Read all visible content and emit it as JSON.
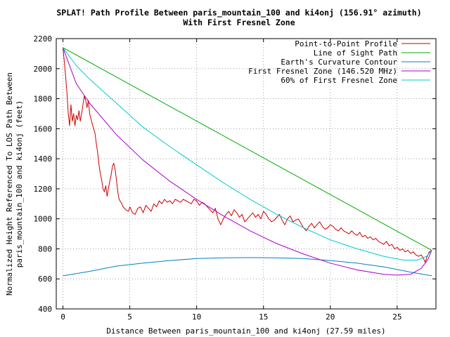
{
  "chart_data": {
    "type": "line",
    "title": "SPLAT! Path Profile Between paris_mountain_100 and ki4onj (156.91° azimuth)",
    "subtitle": "With First Fresnel Zone",
    "xlabel": "Distance Between paris_mountain_100 and ki4onj (27.59 miles)",
    "ylabel_line1": "Normalized Height Referenced To LOS Path Between",
    "ylabel_line2": "paris_mountain_100 and ki4onj (feet)",
    "xlim": [
      -0.5,
      27.9
    ],
    "ylim": [
      400,
      2200
    ],
    "x_ticks": [
      0,
      5,
      10,
      15,
      20,
      25
    ],
    "y_ticks": [
      400,
      600,
      800,
      1000,
      1200,
      1400,
      1600,
      1800,
      2000,
      2200
    ],
    "grid": true,
    "legend_position": "top-right",
    "series": [
      {
        "name": "Point-to-Point Profile",
        "color": "#cc0000",
        "points": [
          [
            0,
            2140
          ],
          [
            0.1,
            2050
          ],
          [
            0.2,
            1950
          ],
          [
            0.3,
            1840
          ],
          [
            0.4,
            1700
          ],
          [
            0.5,
            1620
          ],
          [
            0.6,
            1760
          ],
          [
            0.7,
            1650
          ],
          [
            0.8,
            1700
          ],
          [
            0.9,
            1620
          ],
          [
            1.0,
            1690
          ],
          [
            1.1,
            1660
          ],
          [
            1.2,
            1720
          ],
          [
            1.3,
            1650
          ],
          [
            1.4,
            1700
          ],
          [
            1.5,
            1760
          ],
          [
            1.6,
            1820
          ],
          [
            1.7,
            1790
          ],
          [
            1.8,
            1740
          ],
          [
            1.9,
            1790
          ],
          [
            2.0,
            1700
          ],
          [
            2.2,
            1630
          ],
          [
            2.4,
            1570
          ],
          [
            2.5,
            1500
          ],
          [
            2.6,
            1440
          ],
          [
            2.7,
            1360
          ],
          [
            2.8,
            1300
          ],
          [
            2.9,
            1260
          ],
          [
            3.0,
            1200
          ],
          [
            3.1,
            1180
          ],
          [
            3.2,
            1220
          ],
          [
            3.3,
            1150
          ],
          [
            3.4,
            1200
          ],
          [
            3.5,
            1250
          ],
          [
            3.6,
            1290
          ],
          [
            3.7,
            1350
          ],
          [
            3.8,
            1370
          ],
          [
            3.9,
            1330
          ],
          [
            4.0,
            1260
          ],
          [
            4.1,
            1180
          ],
          [
            4.2,
            1130
          ],
          [
            4.4,
            1100
          ],
          [
            4.5,
            1080
          ],
          [
            4.7,
            1060
          ],
          [
            4.9,
            1050
          ],
          [
            5.0,
            1080
          ],
          [
            5.2,
            1040
          ],
          [
            5.4,
            1030
          ],
          [
            5.6,
            1070
          ],
          [
            5.8,
            1080
          ],
          [
            6.0,
            1040
          ],
          [
            6.2,
            1090
          ],
          [
            6.4,
            1070
          ],
          [
            6.6,
            1050
          ],
          [
            6.8,
            1100
          ],
          [
            7.0,
            1080
          ],
          [
            7.2,
            1120
          ],
          [
            7.4,
            1100
          ],
          [
            7.6,
            1130
          ],
          [
            7.8,
            1110
          ],
          [
            8.0,
            1120
          ],
          [
            8.2,
            1100
          ],
          [
            8.4,
            1130
          ],
          [
            8.6,
            1120
          ],
          [
            8.8,
            1110
          ],
          [
            9.0,
            1130
          ],
          [
            9.2,
            1120
          ],
          [
            9.4,
            1110
          ],
          [
            9.6,
            1100
          ],
          [
            9.8,
            1130
          ],
          [
            10.0,
            1120
          ],
          [
            10.2,
            1090
          ],
          [
            10.4,
            1110
          ],
          [
            10.6,
            1100
          ],
          [
            10.8,
            1080
          ],
          [
            11.0,
            1060
          ],
          [
            11.2,
            1040
          ],
          [
            11.4,
            1070
          ],
          [
            11.6,
            1000
          ],
          [
            11.8,
            960
          ],
          [
            12.0,
            1000
          ],
          [
            12.2,
            1030
          ],
          [
            12.4,
            1050
          ],
          [
            12.6,
            1020
          ],
          [
            12.8,
            1060
          ],
          [
            13.0,
            1040
          ],
          [
            13.2,
            1010
          ],
          [
            13.4,
            1030
          ],
          [
            13.6,
            980
          ],
          [
            13.8,
            1000
          ],
          [
            14.0,
            1020
          ],
          [
            14.2,
            1040
          ],
          [
            14.4,
            1010
          ],
          [
            14.6,
            1030
          ],
          [
            14.8,
            1000
          ],
          [
            15.0,
            1050
          ],
          [
            15.2,
            1030
          ],
          [
            15.4,
            1000
          ],
          [
            15.6,
            980
          ],
          [
            15.8,
            990
          ],
          [
            16.0,
            1010
          ],
          [
            16.2,
            1030
          ],
          [
            16.4,
            990
          ],
          [
            16.6,
            960
          ],
          [
            16.8,
            1000
          ],
          [
            17.0,
            1020
          ],
          [
            17.2,
            980
          ],
          [
            17.4,
            990
          ],
          [
            17.6,
            1000
          ],
          [
            17.8,
            970
          ],
          [
            18.0,
            940
          ],
          [
            18.2,
            920
          ],
          [
            18.4,
            950
          ],
          [
            18.6,
            970
          ],
          [
            18.8,
            940
          ],
          [
            19.0,
            960
          ],
          [
            19.2,
            980
          ],
          [
            19.4,
            950
          ],
          [
            19.6,
            930
          ],
          [
            19.8,
            940
          ],
          [
            20.0,
            960
          ],
          [
            20.2,
            950
          ],
          [
            20.4,
            930
          ],
          [
            20.6,
            920
          ],
          [
            20.8,
            940
          ],
          [
            21.0,
            920
          ],
          [
            21.2,
            910
          ],
          [
            21.4,
            900
          ],
          [
            21.6,
            920
          ],
          [
            21.8,
            900
          ],
          [
            22.0,
            890
          ],
          [
            22.2,
            910
          ],
          [
            22.4,
            880
          ],
          [
            22.6,
            890
          ],
          [
            22.8,
            870
          ],
          [
            23.0,
            880
          ],
          [
            23.2,
            860
          ],
          [
            23.4,
            870
          ],
          [
            23.6,
            850
          ],
          [
            23.8,
            840
          ],
          [
            24.0,
            830
          ],
          [
            24.2,
            850
          ],
          [
            24.4,
            820
          ],
          [
            24.6,
            830
          ],
          [
            24.8,
            800
          ],
          [
            25.0,
            810
          ],
          [
            25.2,
            790
          ],
          [
            25.4,
            800
          ],
          [
            25.6,
            780
          ],
          [
            25.8,
            790
          ],
          [
            26.0,
            770
          ],
          [
            26.2,
            780
          ],
          [
            26.4,
            760
          ],
          [
            26.6,
            750
          ],
          [
            26.8,
            760
          ],
          [
            27.0,
            730
          ],
          [
            27.1,
            710
          ],
          [
            27.2,
            740
          ],
          [
            27.3,
            760
          ],
          [
            27.4,
            780
          ],
          [
            27.59,
            790
          ]
        ]
      },
      {
        "name": "Line of Sight Path",
        "color": "#00aa00",
        "points": [
          [
            0,
            2140
          ],
          [
            27.59,
            790
          ]
        ]
      },
      {
        "name": "Earth's Curvature Contour",
        "color": "#0080c0",
        "points": [
          [
            0,
            620
          ],
          [
            2,
            650
          ],
          [
            4,
            685
          ],
          [
            6,
            705
          ],
          [
            8,
            722
          ],
          [
            10,
            735
          ],
          [
            12,
            740
          ],
          [
            14,
            742
          ],
          [
            16,
            740
          ],
          [
            18,
            735
          ],
          [
            20,
            722
          ],
          [
            22,
            705
          ],
          [
            24,
            680
          ],
          [
            26,
            645
          ],
          [
            27.59,
            620
          ]
        ]
      },
      {
        "name": "First Fresnel Zone (146.520 MHz)",
        "color": "#aa00cc",
        "points": [
          [
            0,
            2140
          ],
          [
            1,
            1900
          ],
          [
            2,
            1770
          ],
          [
            4,
            1560
          ],
          [
            6,
            1390
          ],
          [
            8,
            1250
          ],
          [
            10,
            1130
          ],
          [
            12,
            1020
          ],
          [
            14,
            920
          ],
          [
            16,
            835
          ],
          [
            18,
            765
          ],
          [
            20,
            705
          ],
          [
            22,
            660
          ],
          [
            24,
            630
          ],
          [
            25,
            625
          ],
          [
            26,
            630
          ],
          [
            26.8,
            670
          ],
          [
            27.3,
            730
          ],
          [
            27.59,
            790
          ]
        ]
      },
      {
        "name": "60% of First Fresnel Zone",
        "color": "#00cccc",
        "points": [
          [
            0,
            2140
          ],
          [
            1,
            2020
          ],
          [
            2,
            1930
          ],
          [
            4,
            1770
          ],
          [
            6,
            1610
          ],
          [
            8,
            1480
          ],
          [
            10,
            1360
          ],
          [
            12,
            1240
          ],
          [
            14,
            1130
          ],
          [
            16,
            1030
          ],
          [
            18,
            940
          ],
          [
            20,
            860
          ],
          [
            22,
            800
          ],
          [
            24,
            750
          ],
          [
            25.5,
            725
          ],
          [
            26.5,
            725
          ],
          [
            27.2,
            750
          ],
          [
            27.59,
            790
          ]
        ]
      }
    ]
  }
}
